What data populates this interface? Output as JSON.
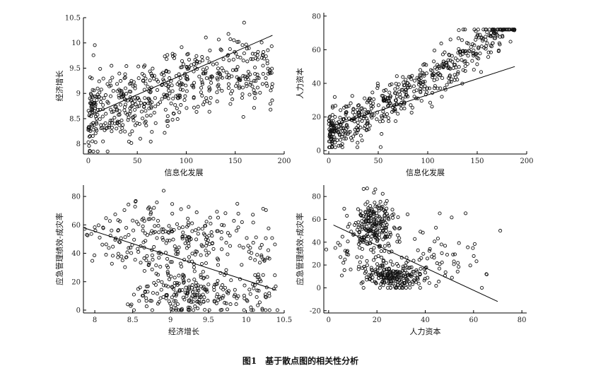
{
  "figure": {
    "caption": "图1　基于散点图的相关性分析"
  },
  "chart_data": [
    {
      "type": "scatter",
      "title": "",
      "xlabel": "信息化发展",
      "ylabel": "经济增长",
      "xlim": [
        -5,
        200
      ],
      "ylim": [
        7.8,
        10.5
      ],
      "xticks": [
        0,
        50,
        100,
        150,
        200
      ],
      "yticks": [
        8,
        8.5,
        9,
        9.5,
        10,
        10.5
      ],
      "fit_line": {
        "x": [
          0,
          188
        ],
        "y": [
          8.55,
          10.15
        ]
      },
      "gen": {
        "n": 560,
        "xmin": 0,
        "xmax": 188,
        "skew": 1.25,
        "base": 8.55,
        "slope": 0.0085,
        "curve": -2e-05,
        "noise": 0.38,
        "seed": 11,
        "ymin": 7.85,
        "ymax": 10.4
      }
    },
    {
      "type": "scatter",
      "title": "",
      "xlabel": "信息化发展",
      "ylabel": "人力资本",
      "xlim": [
        -5,
        200
      ],
      "ylim": [
        -2,
        82
      ],
      "xticks": [
        0,
        50,
        100,
        150,
        200
      ],
      "yticks": [
        0,
        20,
        40,
        60,
        80
      ],
      "fit_line": {
        "x": [
          0,
          188
        ],
        "y": [
          14,
          50
        ]
      },
      "gen": {
        "n": 560,
        "xmin": 0,
        "xmax": 188,
        "skew": 1.35,
        "base": 12,
        "slope": 0.22,
        "curve": 0.0008,
        "noise": 6.5,
        "seed": 23,
        "ymin": 2,
        "ymax": 72
      }
    },
    {
      "type": "scatter",
      "title": "",
      "xlabel": "经济增长",
      "ylabel": "应急管理绩效-成灾率",
      "xlim": [
        7.85,
        10.5
      ],
      "ylim": [
        -2,
        88
      ],
      "xticks": [
        8,
        8.5,
        9,
        9.5,
        10,
        10.5
      ],
      "xticklabels": [
        "8",
        "8.5",
        "9",
        "9.5",
        "10",
        "10.5"
      ],
      "yticks": [
        0,
        20,
        40,
        60,
        80
      ],
      "fit_line": {
        "x": [
          7.85,
          10.4
        ],
        "y": [
          58,
          14
        ]
      },
      "gen": {
        "mode": "clusters",
        "seed": 37,
        "ymin": 0,
        "ymax": 86,
        "clusters": [
          {
            "n": 230,
            "cx": 9.0,
            "cy": 50,
            "sx": 0.42,
            "sy": 14
          },
          {
            "n": 200,
            "cx": 9.3,
            "cy": 12,
            "sx": 0.38,
            "sy": 7
          },
          {
            "n": 60,
            "cx": 10.2,
            "cy": 30,
            "sx": 0.12,
            "sy": 22
          },
          {
            "n": 30,
            "cx": 8.2,
            "cy": 50,
            "sx": 0.25,
            "sy": 10
          }
        ]
      }
    },
    {
      "type": "scatter",
      "title": "",
      "xlabel": "人力资本",
      "ylabel": "应急管理绩效-成灾率",
      "xlim": [
        -2,
        82
      ],
      "ylim": [
        -22,
        90
      ],
      "xticks": [
        0,
        20,
        40,
        60,
        80
      ],
      "yticks": [
        -20,
        0,
        20,
        40,
        60,
        80
      ],
      "fit_line": {
        "x": [
          2,
          70
        ],
        "y": [
          55,
          -12
        ]
      },
      "gen": {
        "mode": "clusters",
        "seed": 53,
        "ymin": 0,
        "ymax": 88,
        "clusters": [
          {
            "n": 240,
            "cx": 19,
            "cy": 52,
            "sx": 5,
            "sy": 14
          },
          {
            "n": 210,
            "cx": 28,
            "cy": 10,
            "sx": 7,
            "sy": 6
          },
          {
            "n": 60,
            "cx": 50,
            "cy": 25,
            "sx": 14,
            "sy": 20
          },
          {
            "n": 20,
            "cx": 6,
            "cy": 30,
            "sx": 3,
            "sy": 15
          }
        ]
      }
    }
  ]
}
